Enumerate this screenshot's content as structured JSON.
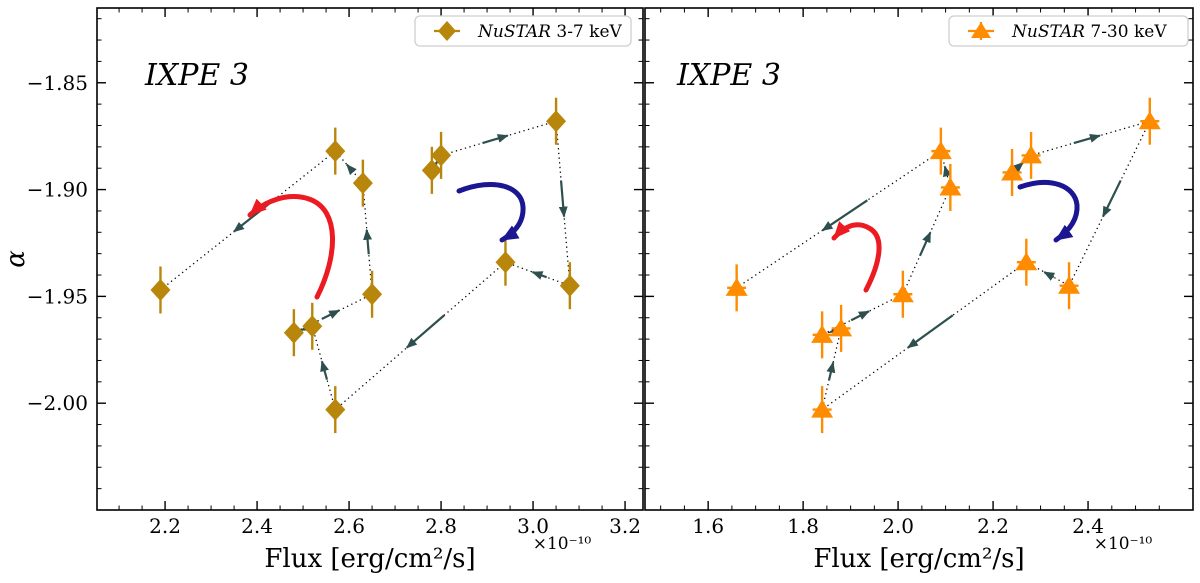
{
  "figure": {
    "watermark": "IXPE 3",
    "ylabel": "α",
    "xlabel": "Flux [erg/cm²/s]",
    "offset_label": "×10⁻¹⁰",
    "colors": {
      "diamond": "#B8860B",
      "triangle": "#FF8C00",
      "path_arrow": "#2F4F4F",
      "loop_red": "#EC1B22",
      "loop_blue": "#1B1692",
      "watermark": "#9B9B9B",
      "legend_border": "#CFCFCF",
      "dotted": "#000000",
      "axis": "#000000"
    }
  },
  "chart_data": {
    "type": "scatter",
    "description": "Spectral index alpha vs X-ray flux, 12 time-ordered NuSTAR bins during IXPE 3, connected by dotted path with direction arrows; red/blue curved arrows mark loop direction",
    "xlabel": "Flux [erg/cm²/s]",
    "ylabel": "α",
    "panels": [
      {
        "name": "nustar-3-7",
        "legend": {
          "instrument": "NuSTAR",
          "band": " 3-7 keV"
        },
        "marker": "diamond",
        "color_key": "diamond",
        "watermark": "IXPE 3",
        "xlim": [
          2.052,
          3.239
        ],
        "xticks": [
          2.2,
          2.4,
          2.6,
          2.8,
          3.0,
          3.2
        ],
        "xtick_labels": [
          "2.2",
          "2.4",
          "2.6",
          "2.8",
          "3.0",
          "3.2"
        ],
        "xminor_step": 0.05,
        "ylim": [
          -2.05,
          -1.815
        ],
        "yticks": [
          -1.85,
          -1.9,
          -1.95,
          -2.0
        ],
        "ytick_labels": [
          "−1.85",
          "−1.90",
          "−1.95",
          "−2.00"
        ],
        "yminor_step": 0.01,
        "show_ytick_labels": true,
        "offset_label": "×10⁻¹⁰",
        "flux": [
          2.78,
          2.8,
          3.05,
          3.08,
          2.94,
          2.57,
          2.52,
          2.48,
          2.65,
          2.63,
          2.57,
          2.19
        ],
        "alpha": [
          -1.891,
          -1.884,
          -1.868,
          -1.945,
          -1.934,
          -2.003,
          -1.964,
          -1.967,
          -1.949,
          -1.897,
          -1.882,
          -1.947
        ],
        "flux_err": 0.015,
        "alpha_err": 0.011,
        "loop_arrows": [
          {
            "color_key": "loop_red",
            "direction": "counterclockwise"
          },
          {
            "color_key": "loop_blue",
            "direction": "clockwise"
          }
        ]
      },
      {
        "name": "nustar-7-30",
        "legend": {
          "instrument": "NuSTAR",
          "band": " 7-30 keV"
        },
        "marker": "triangle",
        "color_key": "triangle",
        "watermark": "IXPE 3",
        "xlim": [
          1.467,
          2.621
        ],
        "xticks": [
          1.6,
          1.8,
          2.0,
          2.2,
          2.4
        ],
        "xtick_labels": [
          "1.6",
          "1.8",
          "2.0",
          "2.2",
          "2.4"
        ],
        "xminor_step": 0.05,
        "ylim": [
          -2.05,
          -1.815
        ],
        "yticks": [
          -1.85,
          -1.9,
          -1.95,
          -2.0
        ],
        "ytick_labels": [
          "−1.85",
          "−1.90",
          "−1.95",
          "−2.00"
        ],
        "yminor_step": 0.01,
        "show_ytick_labels": false,
        "offset_label": "×10⁻¹⁰",
        "flux": [
          2.24,
          2.28,
          2.53,
          2.36,
          2.27,
          1.84,
          1.88,
          1.84,
          2.01,
          2.11,
          2.09,
          1.66
        ],
        "alpha": [
          -1.892,
          -1.884,
          -1.868,
          -1.945,
          -1.934,
          -2.003,
          -1.965,
          -1.968,
          -1.949,
          -1.899,
          -1.882,
          -1.946
        ],
        "flux_err": 0.02,
        "alpha_err": 0.011,
        "loop_arrows": [
          {
            "color_key": "loop_red",
            "direction": "counterclockwise"
          },
          {
            "color_key": "loop_blue",
            "direction": "clockwise"
          }
        ]
      }
    ]
  }
}
